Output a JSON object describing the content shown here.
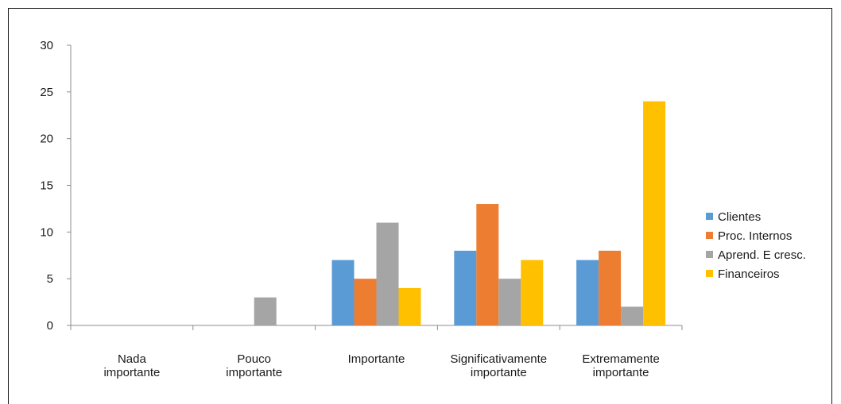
{
  "chart_data": {
    "type": "bar",
    "categories": [
      [
        "Nada",
        "importante"
      ],
      [
        "Pouco",
        "importante"
      ],
      [
        "Importante"
      ],
      [
        "Significativamente",
        "importante"
      ],
      [
        "Extremamente",
        "importante"
      ]
    ],
    "series": [
      {
        "name": "Clientes",
        "color": "#5b9bd5",
        "values": [
          0,
          0,
          7,
          8,
          7
        ]
      },
      {
        "name": "Proc. Internos",
        "color": "#ed7d31",
        "values": [
          0,
          0,
          5,
          13,
          8
        ]
      },
      {
        "name": "Aprend. E cresc.",
        "color": "#a5a5a5",
        "values": [
          0,
          3,
          11,
          5,
          2
        ]
      },
      {
        "name": "Financeiros",
        "color": "#ffc000",
        "values": [
          0,
          0,
          4,
          7,
          24
        ]
      }
    ],
    "ylim": [
      0,
      30
    ],
    "yticks": [
      "0",
      "5",
      "10",
      "15",
      "20",
      "25",
      "30"
    ],
    "grid": false,
    "legend": "right"
  }
}
